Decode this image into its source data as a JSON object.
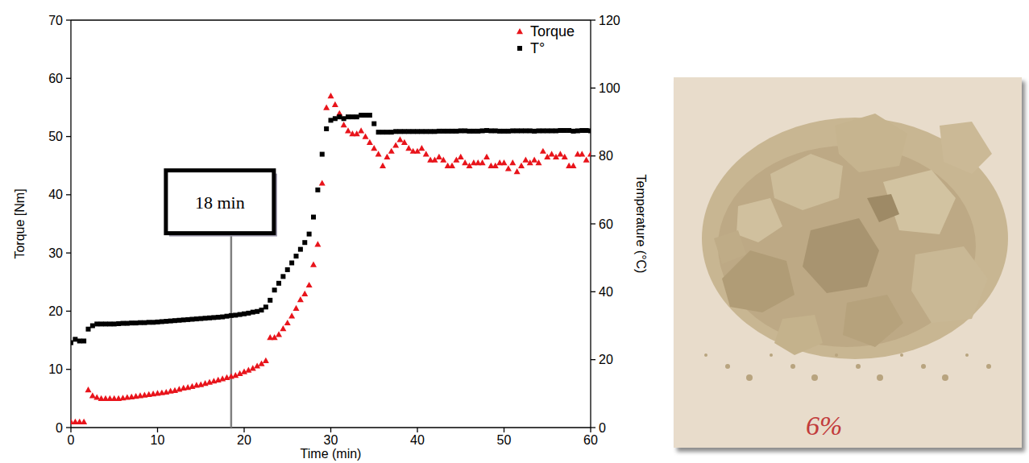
{
  "chart_data": {
    "type": "scatter",
    "x_label": "Time (min)",
    "y_label": "Torque [Nm]",
    "y2_label": "Temperature (°C)",
    "xlim": [
      0,
      60
    ],
    "xticks": [
      0,
      10,
      20,
      30,
      40,
      50,
      60
    ],
    "ylim": [
      0,
      70
    ],
    "yticks": [
      0,
      10,
      20,
      30,
      40,
      50,
      60,
      70
    ],
    "y2lim": [
      0,
      120
    ],
    "y2ticks": [
      0,
      20,
      40,
      60,
      80,
      100,
      120
    ],
    "grid": false,
    "legend": "top-right",
    "annotations": [
      {
        "text": "18 min",
        "x": 18.5,
        "y": 34.5
      }
    ],
    "x": [
      0,
      0.5,
      1,
      1.5,
      2,
      2.5,
      3,
      3.5,
      4,
      4.5,
      5,
      5.5,
      6,
      6.5,
      7,
      7.5,
      8,
      8.5,
      9,
      9.5,
      10,
      10.5,
      11,
      11.5,
      12,
      12.5,
      13,
      13.5,
      14,
      14.5,
      15,
      15.5,
      16,
      16.5,
      17,
      17.5,
      18,
      18.5,
      19,
      19.5,
      20,
      20.5,
      21,
      21.5,
      22,
      22.5,
      23,
      23.5,
      24,
      24.5,
      25,
      25.5,
      26,
      26.5,
      27,
      27.5,
      28,
      28.5,
      29,
      29.5,
      30,
      30.5,
      31,
      31.5,
      32,
      32.5,
      33,
      33.5,
      34,
      34.5,
      35,
      35.5,
      36,
      36.5,
      37,
      37.5,
      38,
      38.5,
      39,
      39.5,
      40,
      40.5,
      41,
      41.5,
      42,
      42.5,
      43,
      43.5,
      44,
      44.5,
      45,
      45.5,
      46,
      46.5,
      47,
      47.5,
      48,
      48.5,
      49,
      49.5,
      50,
      50.5,
      51,
      51.5,
      52,
      52.5,
      53,
      53.5,
      54,
      54.5,
      55,
      55.5,
      56,
      56.5,
      57,
      57.5,
      58,
      58.5,
      59,
      59.5,
      60
    ],
    "series": [
      {
        "name": "Torque",
        "color": "#e8141b",
        "marker": "triangle",
        "values": [
          1,
          1,
          1,
          1,
          6.5,
          5.5,
          5.2,
          5,
          5,
          5,
          5,
          5,
          5.1,
          5.2,
          5.3,
          5.4,
          5.5,
          5.6,
          5.7,
          5.8,
          5.9,
          6,
          6.1,
          6.3,
          6.4,
          6.6,
          6.8,
          6.9,
          7.1,
          7.3,
          7.4,
          7.6,
          7.8,
          8,
          8.2,
          8.4,
          8.6,
          8.8,
          9,
          9.3,
          9.6,
          9.9,
          10.2,
          10.6,
          11,
          11.5,
          15.5,
          15.5,
          16,
          17,
          18,
          19.2,
          20.5,
          22,
          23,
          24.5,
          28,
          31.5,
          42,
          55,
          57,
          55.5,
          54,
          52,
          51,
          50.5,
          50.5,
          51,
          50,
          49,
          48,
          47,
          45,
          46.5,
          47.5,
          48.5,
          49.5,
          49,
          48,
          47.5,
          47.5,
          48,
          47,
          46,
          46,
          46.5,
          46,
          45,
          45,
          46,
          46.5,
          45.5,
          45,
          45.5,
          45.5,
          45.5,
          46.5,
          45,
          45,
          45.5,
          45.5,
          44.5,
          45.5,
          44,
          45,
          46,
          45.5,
          46,
          45.5,
          47.5,
          46.5,
          47,
          46.5,
          47,
          46.5,
          45,
          45,
          47,
          47,
          46,
          47
        ]
      },
      {
        "name": "T°",
        "color": "#000000",
        "marker": "square",
        "axis": "y2",
        "values": [
          25,
          26,
          25.5,
          25.5,
          29,
          30,
          30.5,
          30.5,
          30.5,
          30.5,
          30.5,
          30.6,
          30.7,
          30.7,
          30.8,
          30.8,
          30.9,
          30.9,
          31,
          31,
          31.1,
          31.2,
          31.3,
          31.4,
          31.5,
          31.6,
          31.7,
          31.8,
          31.9,
          32,
          32.1,
          32.2,
          32.3,
          32.4,
          32.5,
          32.6,
          32.8,
          33,
          33.1,
          33.3,
          33.5,
          33.7,
          34,
          34.2,
          34.6,
          35.5,
          37.5,
          40.5,
          42.5,
          44.5,
          46.5,
          48.5,
          50.5,
          52.5,
          54.5,
          57,
          62,
          70,
          80.5,
          88,
          90.5,
          91,
          91.5,
          91,
          91.5,
          91.5,
          91.5,
          92,
          92,
          92,
          89.5,
          87,
          87,
          87,
          87,
          87.2,
          87.2,
          87.2,
          87.2,
          87.2,
          87.2,
          87.2,
          87.2,
          87.2,
          87.2,
          87.3,
          87.3,
          87.3,
          87.3,
          87.3,
          87.4,
          87.4,
          87.3,
          87.3,
          87.3,
          87.4,
          87.5,
          87.4,
          87.4,
          87.3,
          87.3,
          87.3,
          87.4,
          87.4,
          87.4,
          87.4,
          87.4,
          87.3,
          87.4,
          87.4,
          87.4,
          87.4,
          87.4,
          87.5,
          87.5,
          87.5,
          87.3,
          87.4,
          87.5,
          87.5,
          87.4
        ]
      }
    ]
  },
  "photo": {
    "caption": "6%"
  }
}
